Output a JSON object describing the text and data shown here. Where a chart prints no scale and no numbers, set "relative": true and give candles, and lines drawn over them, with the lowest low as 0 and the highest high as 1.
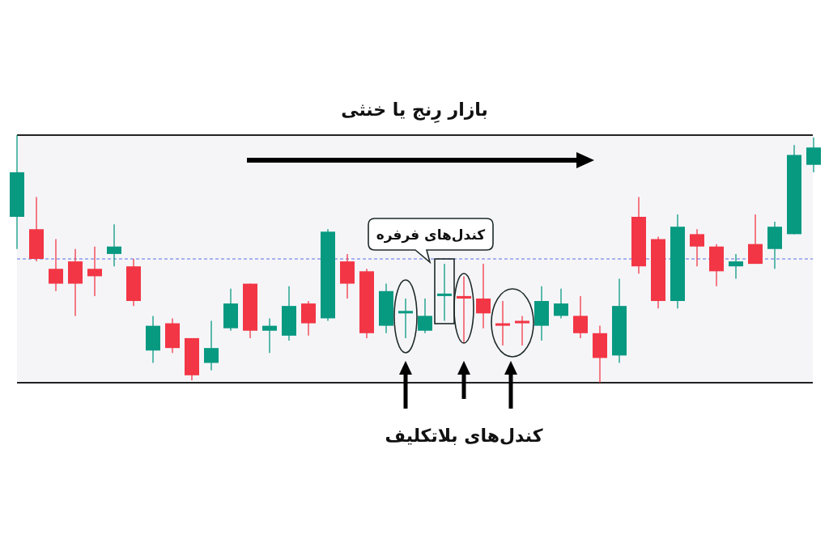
{
  "chart_data": {
    "type": "candlestick",
    "title": "بازار رِنج یا خنثی",
    "annotations": [
      "کندل‌های فرفره",
      "کندل‌های بلاتکلیف"
    ],
    "relative": true,
    "categories": [
      null,
      null,
      null,
      null,
      null,
      null,
      null,
      null,
      null,
      null,
      null,
      null,
      null,
      null,
      null,
      null,
      null,
      null,
      null,
      null,
      null,
      null,
      null,
      null,
      null,
      null,
      null,
      null,
      null,
      null,
      null,
      null,
      null,
      null,
      null,
      null,
      null,
      null,
      null,
      null,
      null,
      null
    ],
    "ohlc": [
      [
        0.67,
        1.0,
        0.54,
        0.85
      ],
      [
        0.62,
        0.75,
        0.49,
        0.5
      ],
      [
        0.46,
        0.58,
        0.37,
        0.4
      ],
      [
        0.49,
        0.54,
        0.27,
        0.4
      ],
      [
        0.46,
        0.55,
        0.35,
        0.43
      ],
      [
        0.52,
        0.64,
        0.47,
        0.55
      ],
      [
        0.47,
        0.5,
        0.31,
        0.33
      ],
      [
        0.13,
        0.27,
        0.08,
        0.23
      ],
      [
        0.24,
        0.26,
        0.12,
        0.14
      ],
      [
        0.18,
        0.18,
        0.01,
        0.03
      ],
      [
        0.08,
        0.25,
        0.05,
        0.14
      ],
      [
        0.22,
        0.38,
        0.21,
        0.32
      ],
      [
        0.4,
        0.4,
        0.18,
        0.21
      ],
      [
        0.21,
        0.26,
        0.12,
        0.23
      ],
      [
        0.19,
        0.39,
        0.17,
        0.31
      ],
      [
        0.32,
        0.33,
        0.19,
        0.24
      ],
      [
        0.26,
        0.62,
        0.25,
        0.61
      ],
      [
        0.49,
        0.52,
        0.34,
        0.4
      ],
      [
        0.45,
        0.46,
        0.18,
        0.2
      ],
      [
        0.23,
        0.4,
        0.2,
        0.37
      ],
      [
        0.28,
        0.34,
        0.18,
        0.29
      ],
      [
        0.21,
        0.34,
        0.2,
        0.27
      ],
      [
        0.35,
        0.48,
        0.25,
        0.36
      ],
      [
        0.35,
        0.43,
        0.16,
        0.34
      ],
      [
        0.34,
        0.48,
        0.22,
        0.28
      ],
      [
        0.24,
        0.33,
        0.15,
        0.23
      ],
      [
        0.25,
        0.27,
        0.15,
        0.24
      ],
      [
        0.23,
        0.39,
        0.17,
        0.33
      ],
      [
        0.27,
        0.38,
        0.26,
        0.32
      ],
      [
        0.27,
        0.35,
        0.18,
        0.2
      ],
      [
        0.2,
        0.23,
        0.0,
        0.1
      ],
      [
        0.11,
        0.42,
        0.08,
        0.31
      ],
      [
        0.67,
        0.75,
        0.44,
        0.47
      ],
      [
        0.58,
        0.59,
        0.3,
        0.33
      ],
      [
        0.33,
        0.68,
        0.3,
        0.63
      ],
      [
        0.6,
        0.62,
        0.47,
        0.55
      ],
      [
        0.55,
        0.56,
        0.39,
        0.45
      ],
      [
        0.47,
        0.52,
        0.42,
        0.49
      ],
      [
        0.56,
        0.68,
        0.48,
        0.48
      ],
      [
        0.54,
        0.65,
        0.46,
        0.63
      ],
      [
        0.6,
        0.96,
        0.6,
        0.92
      ],
      [
        0.88,
        0.99,
        0.85,
        0.95
      ]
    ],
    "colors": [
      "#089981",
      "#f23645",
      "#f23645",
      "#f23645",
      "#f23645",
      "#089981",
      "#f23645",
      "#089981",
      "#f23645",
      "#f23645",
      "#089981",
      "#089981",
      "#f23645",
      "#089981",
      "#089981",
      "#f23645",
      "#089981",
      "#f23645",
      "#f23645",
      "#089981",
      "#089981",
      "#089981",
      "#089981",
      "#f23645",
      "#f23645",
      "#f23645",
      "#f23645",
      "#089981",
      "#089981",
      "#f23645",
      "#f23645",
      "#089981",
      "#f23645",
      "#f23645",
      "#089981",
      "#f23645",
      "#f23645",
      "#089981",
      "#f23645",
      "#089981",
      "#089981",
      "#089981"
    ],
    "bands": [
      {
        "axis": "y",
        "from": 0,
        "to": 1,
        "color": "#f5f5f8"
      }
    ],
    "ref_lines": [
      {
        "axis": "y",
        "value": 1,
        "color": "#222222"
      },
      {
        "axis": "y",
        "value": 0,
        "color": "#222222"
      },
      {
        "axis": "y",
        "value": 0.5,
        "color": "#5b6ee1",
        "line_style": "dashed"
      }
    ]
  }
}
